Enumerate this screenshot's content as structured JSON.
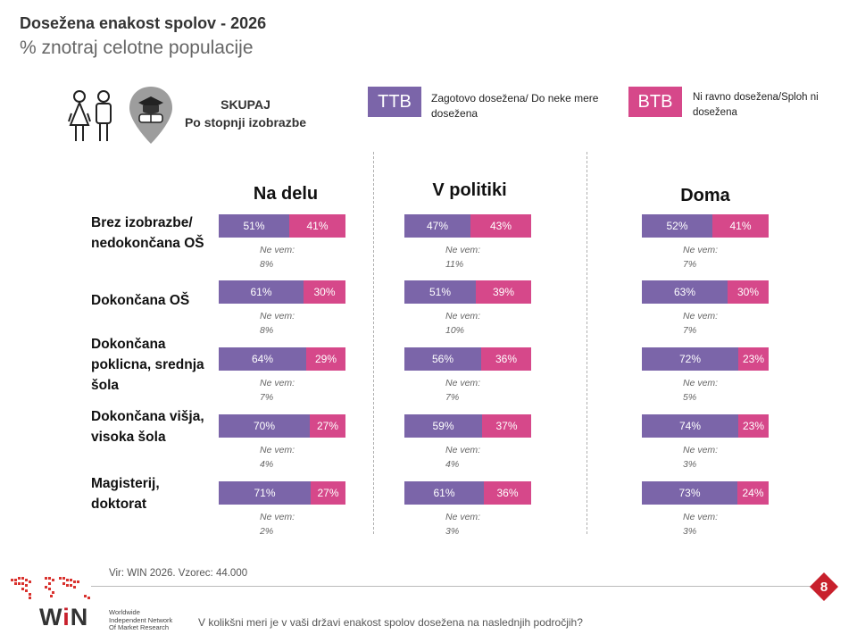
{
  "header": {
    "title": "Dosežena enakost spolov - 2026",
    "subtitle": "% znotraj celotne populacije"
  },
  "segment": {
    "line1": "SKUPAJ",
    "line2": "Po stopnji izobrazbe"
  },
  "legend": {
    "ttb": {
      "label": "TTB",
      "text": "Zagotovo dosežena/ Do neke mere dosežena",
      "color": "#7b65a9"
    },
    "btb": {
      "label": "BTB",
      "text": "Ni ravno dosežena/Sploh ni dosežena",
      "color": "#d6488a"
    }
  },
  "icons": [
    "people-icon",
    "graduation-pin-icon",
    "win-logo-map"
  ],
  "chart_data": {
    "type": "bar",
    "panels": [
      "Na delu",
      "V politiki",
      "Doma"
    ],
    "categories": [
      "Brez izobrazbe/ nedokončana OŠ",
      "Dokončana OŠ",
      "Dokončana poklicna, srednja šola",
      "Dokončana višja, visoka šola",
      "Magisterij, doktorat"
    ],
    "series": [
      {
        "name": "TTB",
        "values": [
          [
            51,
            47,
            52
          ],
          [
            61,
            51,
            63
          ],
          [
            64,
            56,
            72
          ],
          [
            70,
            59,
            74
          ],
          [
            71,
            61,
            73
          ]
        ]
      },
      {
        "name": "BTB",
        "values": [
          [
            41,
            43,
            41
          ],
          [
            30,
            39,
            30
          ],
          [
            29,
            36,
            23
          ],
          [
            27,
            37,
            23
          ],
          [
            27,
            36,
            24
          ]
        ]
      },
      {
        "name": "Ne vem",
        "values": [
          [
            8,
            11,
            7
          ],
          [
            8,
            10,
            7
          ],
          [
            7,
            7,
            5
          ],
          [
            4,
            4,
            3
          ],
          [
            2,
            3,
            3
          ]
        ]
      }
    ],
    "nevem_label": "Ne vem:"
  },
  "footer": {
    "source": "Vir: WIN 2026.  Vzorec: 44.000",
    "page": "8",
    "logo": {
      "name": "WiN",
      "w": "W",
      "i": "i",
      "n": "N",
      "tag1": "Worldwide",
      "tag2": "Independent Network",
      "tag3": "Of Market Research"
    },
    "question": "V kolikšni meri je v vaši državi enakost spolov dosežena na naslednjih področjih?"
  }
}
